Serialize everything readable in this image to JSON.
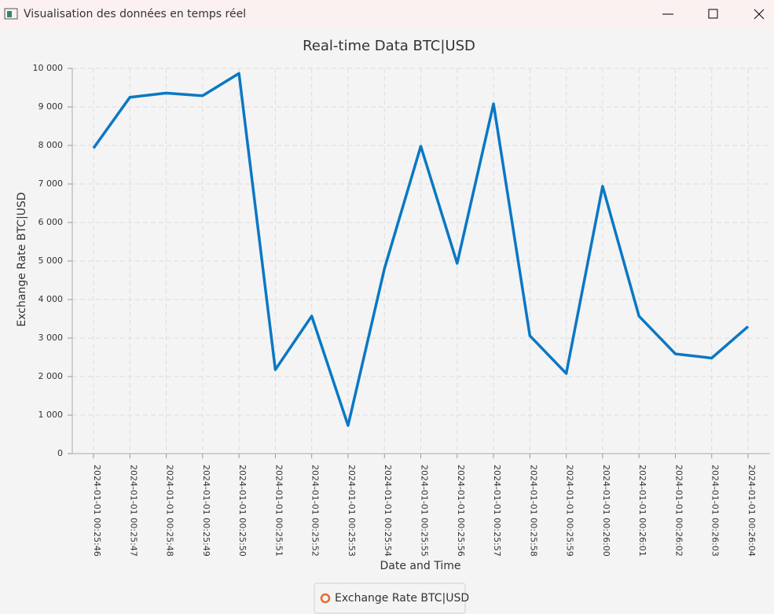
{
  "window": {
    "title": "Visualisation des données en temps réel"
  },
  "chart_data": {
    "type": "line",
    "title": "Real-time Data BTC|USD",
    "x_label": "Date and Time",
    "y_label": "Exchange Rate BTC|USD",
    "categories": [
      "2024-01-01 00:25:46",
      "2024-01-01 00:25:47",
      "2024-01-01 00:25:48",
      "2024-01-01 00:25:49",
      "2024-01-01 00:25:50",
      "2024-01-01 00:25:51",
      "2024-01-01 00:25:52",
      "2024-01-01 00:25:53",
      "2024-01-01 00:25:54",
      "2024-01-01 00:25:55",
      "2024-01-01 00:25:56",
      "2024-01-01 00:25:57",
      "2024-01-01 00:25:58",
      "2024-01-01 00:25:59",
      "2024-01-01 00:26:00",
      "2024-01-01 00:26:01",
      "2024-01-01 00:26:02",
      "2024-01-01 00:26:03",
      "2024-01-01 00:26:04"
    ],
    "series": [
      {
        "name": "Exchange Rate BTC|USD",
        "color": "#0a78c4",
        "values": [
          7930,
          9250,
          9360,
          9290,
          9870,
          2180,
          3570,
          730,
          4800,
          7980,
          4940,
          9080,
          3060,
          2080,
          6940,
          3570,
          2590,
          2480,
          3300
        ]
      }
    ],
    "legend_marker_color": "#e8692f",
    "ylim": [
      0,
      10000
    ],
    "yticks": [
      0,
      {
        "value": 1000,
        "label": "1 000"
      },
      {
        "value": 2000,
        "label": "2 000"
      },
      {
        "value": 3000,
        "label": "3 000"
      },
      {
        "value": 4000,
        "label": "4 000"
      },
      {
        "value": 5000,
        "label": "5 000"
      },
      {
        "value": 6000,
        "label": "6 000"
      },
      {
        "value": 7000,
        "label": "7 000"
      },
      {
        "value": 8000,
        "label": "8 000"
      },
      {
        "value": 9000,
        "label": "9 000"
      },
      {
        "value": 10000,
        "label": "10 000"
      }
    ],
    "grid": true
  }
}
